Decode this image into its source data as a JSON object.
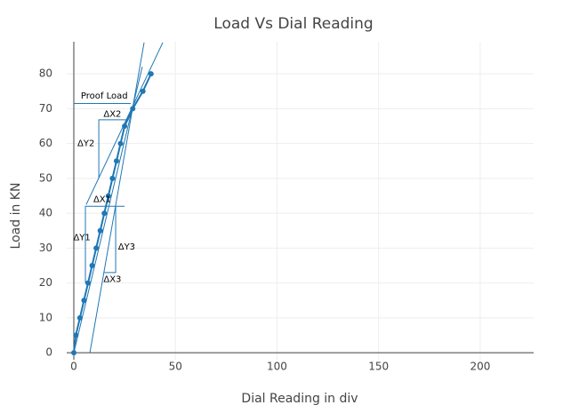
{
  "chart_data": {
    "type": "line",
    "title": "Load Vs Dial Reading",
    "x_label": "Dial Reading in div",
    "y_label": "Load in KN",
    "x": [
      0,
      1,
      3,
      5,
      7,
      9,
      11,
      13,
      15,
      17,
      19,
      21,
      23,
      25,
      29,
      34,
      38
    ],
    "series": [
      {
        "color": "#1f77b4",
        "values": [
          0,
          5,
          10,
          15,
          20,
          25,
          30,
          35,
          40,
          45,
          50,
          55,
          60,
          65,
          70,
          75,
          80
        ]
      }
    ],
    "shapes": [
      {
        "x": [
          0,
          28
        ],
        "y": [
          71.5,
          71.5
        ]
      },
      {
        "x": [
          7.9,
          34.6
        ],
        "y": [
          0,
          89
        ]
      },
      {
        "x": [
          6.1,
          43.8
        ],
        "y": [
          42.5,
          89
        ]
      },
      {
        "x": [
          0,
          33.7
        ],
        "y": [
          0,
          82
        ]
      },
      {
        "x": [
          25,
          5.7,
          5.7
        ],
        "y": [
          42,
          42,
          20
        ]
      },
      {
        "x": [
          27,
          12.3,
          12.3
        ],
        "y": [
          66.8,
          66.8,
          50
        ]
      },
      {
        "x": [
          20.6,
          20.6,
          15
        ],
        "y": [
          42,
          23,
          23
        ]
      }
    ],
    "annotations": [
      {
        "text": "Proof Load",
        "x": 15,
        "y": 73.6
      },
      {
        "text": "ΔX2",
        "x": 19,
        "y": 68.5
      },
      {
        "text": "ΔY2",
        "x": 6,
        "y": 60
      },
      {
        "text": "ΔX1",
        "x": 14,
        "y": 44
      },
      {
        "text": "ΔY1",
        "x": 4,
        "y": 33
      },
      {
        "text": "ΔY3",
        "x": 26,
        "y": 30.3
      },
      {
        "text": "ΔX3",
        "x": 19,
        "y": 21
      }
    ],
    "xlim": [
      -3.5,
      226.3
    ],
    "ylim": [
      -2,
      89.2
    ],
    "xticks": [
      0,
      50,
      100,
      150,
      200
    ],
    "yticks": [
      0,
      10,
      20,
      30,
      40,
      50,
      60,
      70,
      80
    ],
    "grid": true
  }
}
